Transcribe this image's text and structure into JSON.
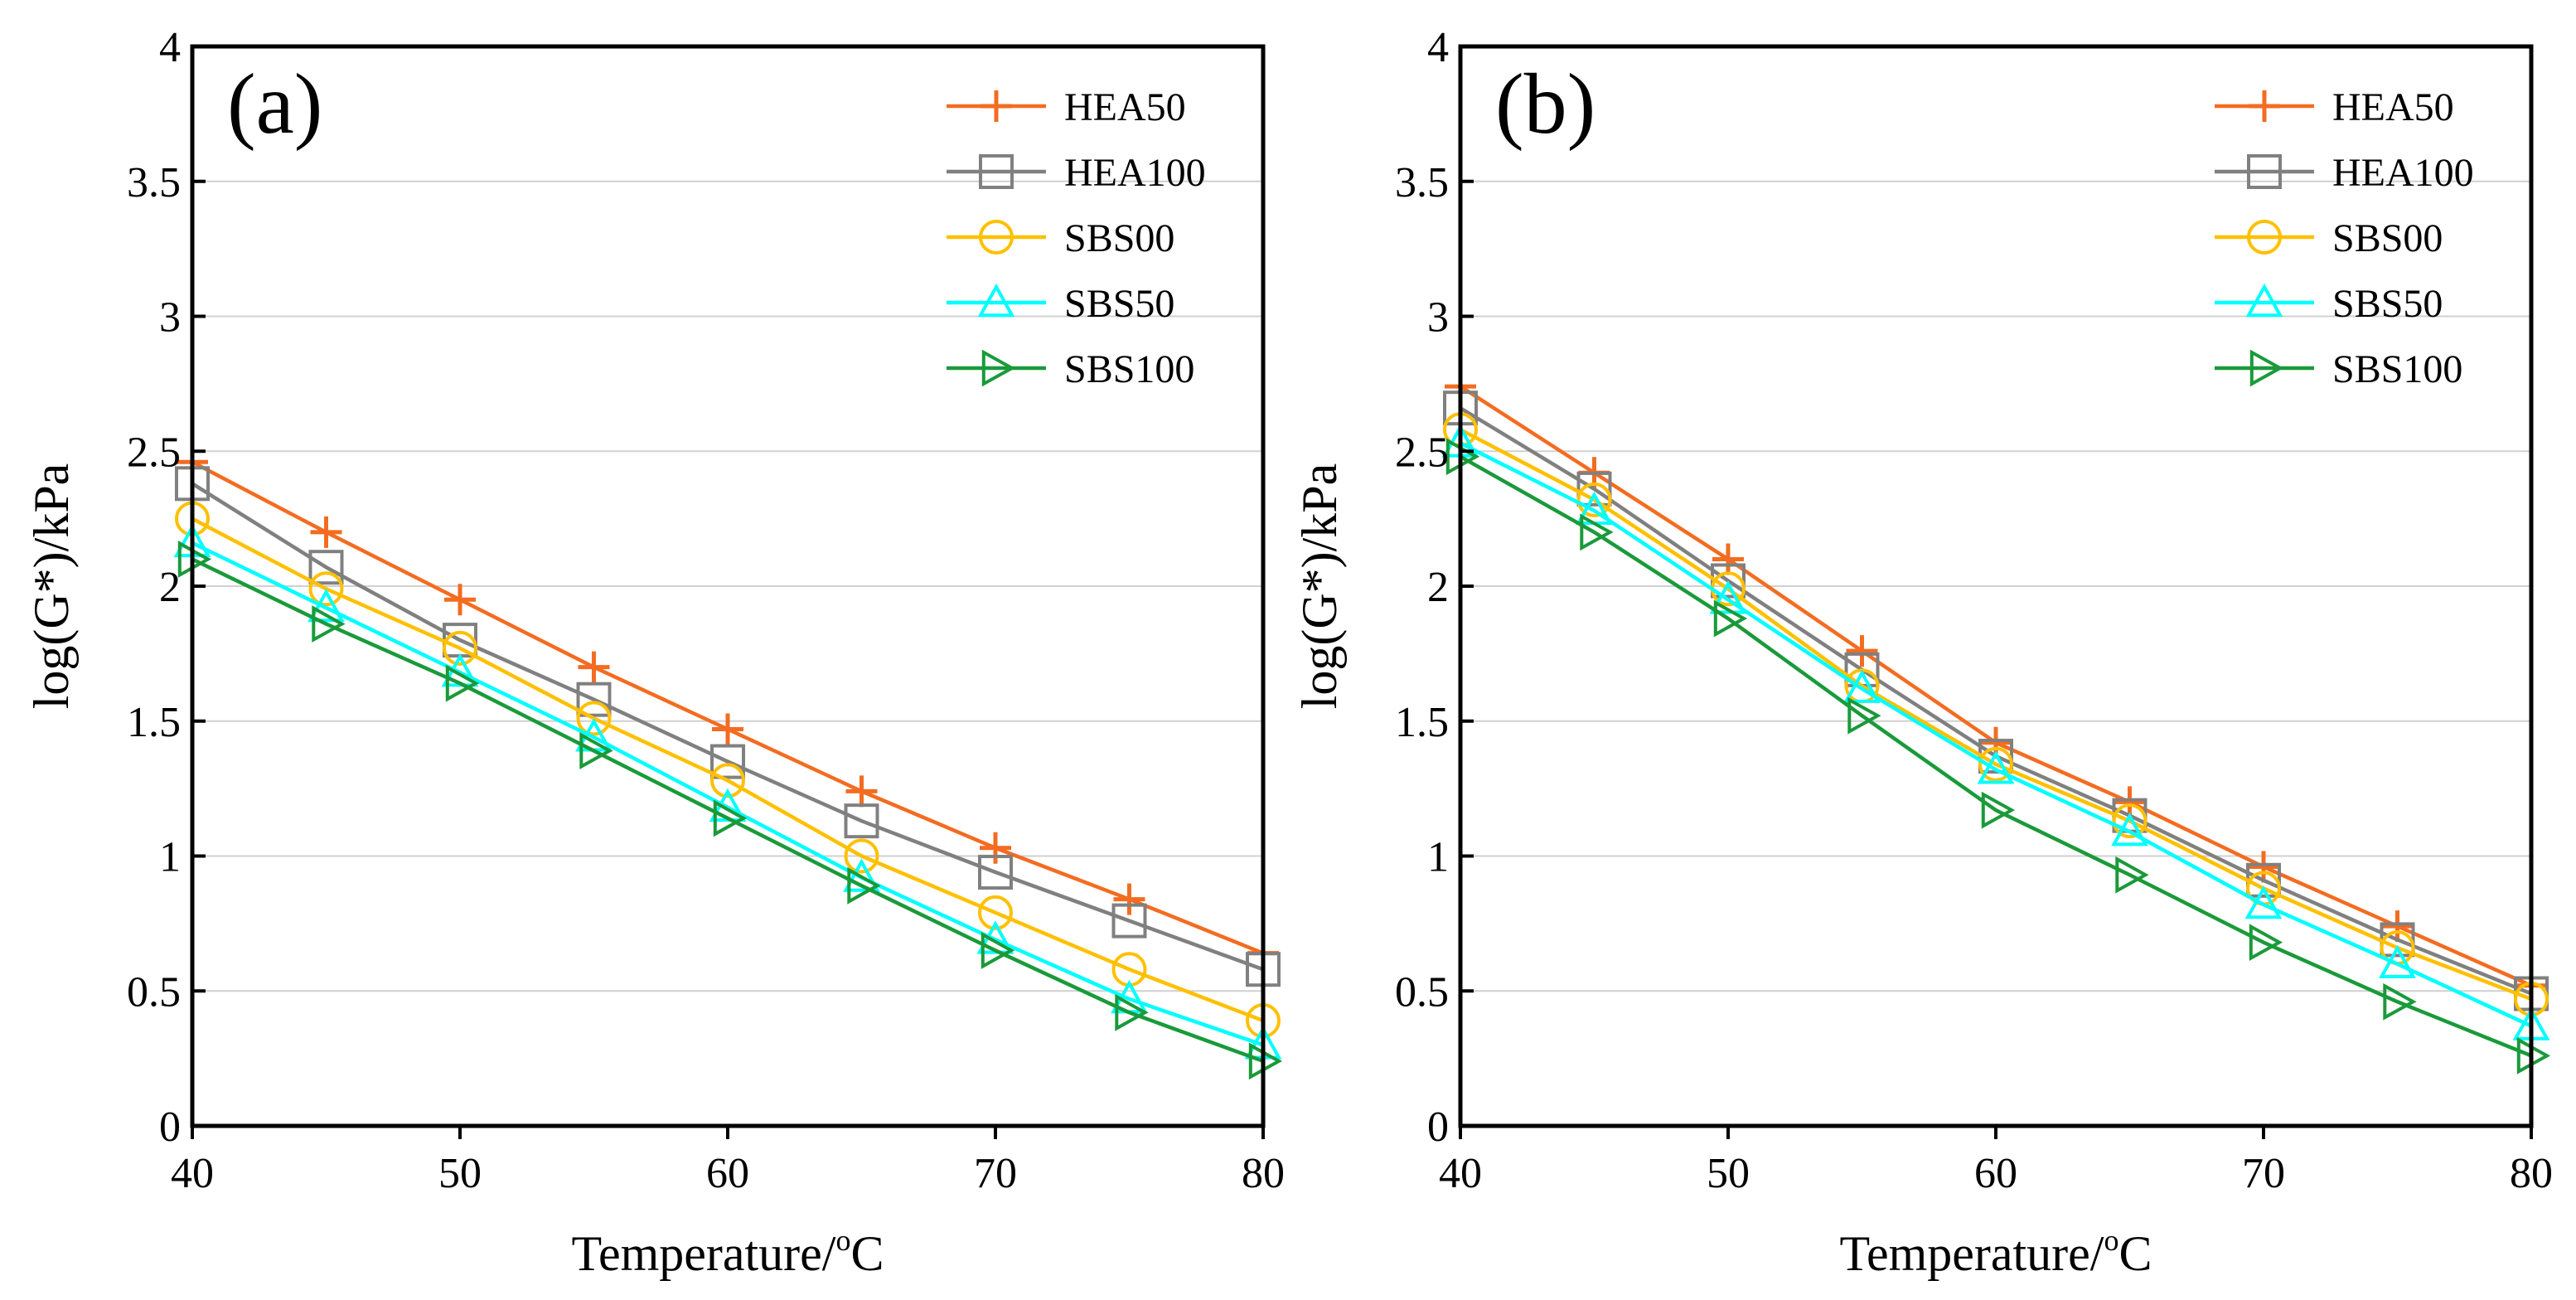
{
  "colors": {
    "HEA50": "#f36c21",
    "HEA100": "#808080",
    "SBS00": "#ffc000",
    "SBS50": "#00ffff",
    "SBS100": "#1a9a3a",
    "grid": "#d0d0d0",
    "axis": "#000000"
  },
  "chart_data": [
    {
      "type": "line",
      "panel_label": "(a)",
      "xlabel": "Temperature/",
      "xlabel_sup": "o",
      "xlabel_unit": "C",
      "ylabel": "log(G*)/kPa",
      "xlim": [
        40,
        80
      ],
      "ylim": [
        0,
        4
      ],
      "xticks": [
        40,
        50,
        60,
        70,
        80
      ],
      "yticks": [
        0,
        0.5,
        1,
        1.5,
        2,
        2.5,
        3,
        3.5,
        4
      ],
      "ytick_labels": [
        "0",
        "0.5",
        "1",
        "1.5",
        "2",
        "2.5",
        "3",
        "3.5",
        "4"
      ],
      "grid": "horizontal",
      "legend_position": "top-right",
      "x": [
        40,
        45,
        50,
        55,
        60,
        65,
        70,
        75,
        80
      ],
      "series": [
        {
          "name": "HEA50",
          "marker": "plus",
          "values": [
            2.46,
            2.2,
            1.95,
            1.7,
            1.47,
            1.24,
            1.03,
            0.84,
            0.64
          ]
        },
        {
          "name": "HEA100",
          "marker": "square",
          "values": [
            2.38,
            2.07,
            1.8,
            1.58,
            1.35,
            1.13,
            0.94,
            0.76,
            0.58
          ]
        },
        {
          "name": "SBS00",
          "marker": "circle",
          "values": [
            2.25,
            1.99,
            1.77,
            1.51,
            1.28,
            1.0,
            0.79,
            0.58,
            0.39
          ]
        },
        {
          "name": "SBS50",
          "marker": "triangle-up",
          "values": [
            2.16,
            1.92,
            1.68,
            1.44,
            1.18,
            0.92,
            0.69,
            0.47,
            0.3
          ]
        },
        {
          "name": "SBS100",
          "marker": "triangle-right",
          "values": [
            2.1,
            1.86,
            1.64,
            1.39,
            1.14,
            0.89,
            0.65,
            0.42,
            0.24
          ]
        }
      ]
    },
    {
      "type": "line",
      "panel_label": "(b)",
      "xlabel": "Temperature/",
      "xlabel_sup": "o",
      "xlabel_unit": "C",
      "ylabel": "log(G*)/kPa",
      "xlim": [
        40,
        80
      ],
      "ylim": [
        0,
        4
      ],
      "xticks": [
        40,
        50,
        60,
        70,
        80
      ],
      "yticks": [
        0,
        0.5,
        1,
        1.5,
        2,
        2.5,
        3,
        3.5,
        4
      ],
      "ytick_labels": [
        "0",
        "0.5",
        "1",
        "1.5",
        "2",
        "2.5",
        "3",
        "3.5",
        "4"
      ],
      "grid": "horizontal",
      "legend_position": "top-right",
      "x": [
        40,
        45,
        50,
        55,
        60,
        65,
        70,
        75,
        80
      ],
      "series": [
        {
          "name": "HEA50",
          "marker": "plus",
          "values": [
            2.74,
            2.42,
            2.1,
            1.76,
            1.42,
            1.2,
            0.96,
            0.74,
            0.52
          ]
        },
        {
          "name": "HEA100",
          "marker": "square",
          "values": [
            2.66,
            2.36,
            2.02,
            1.69,
            1.37,
            1.15,
            0.91,
            0.69,
            0.49
          ]
        },
        {
          "name": "SBS00",
          "marker": "circle",
          "values": [
            2.58,
            2.32,
            1.99,
            1.63,
            1.34,
            1.13,
            0.88,
            0.66,
            0.47
          ]
        },
        {
          "name": "SBS50",
          "marker": "triangle-up",
          "values": [
            2.53,
            2.28,
            1.95,
            1.62,
            1.32,
            1.09,
            0.82,
            0.6,
            0.37
          ]
        },
        {
          "name": "SBS100",
          "marker": "triangle-right",
          "values": [
            2.48,
            2.2,
            1.88,
            1.52,
            1.17,
            0.93,
            0.68,
            0.46,
            0.26
          ]
        }
      ]
    }
  ]
}
